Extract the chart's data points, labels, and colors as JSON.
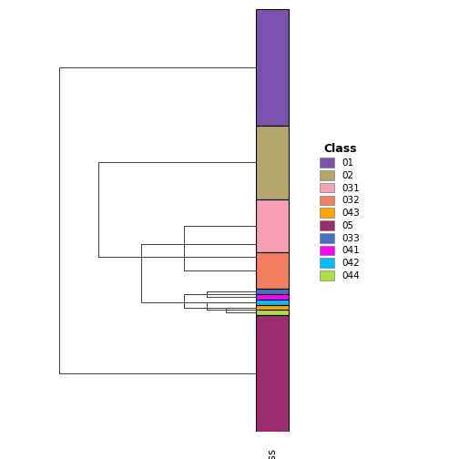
{
  "title": "",
  "xlabel": "Class",
  "legend_title": "Class",
  "classes": [
    "01",
    "02",
    "031",
    "032",
    "043",
    "05",
    "033",
    "041",
    "042",
    "044"
  ],
  "class_colors": {
    "01": "#7B52AE",
    "02": "#B5A76C",
    "031": "#F5A0B5",
    "032": "#F08060",
    "043": "#FFA500",
    "05": "#9B2D6E",
    "033": "#4472C4",
    "041": "#FF00FF",
    "042": "#00BFFF",
    "044": "#ADDF3E"
  },
  "segments_ordered": [
    {
      "class": "01",
      "n": 22
    },
    {
      "class": "02",
      "n": 14
    },
    {
      "class": "031",
      "n": 10
    },
    {
      "class": "032",
      "n": 7
    },
    {
      "class": "033",
      "n": 1
    },
    {
      "class": "041",
      "n": 1
    },
    {
      "class": "042",
      "n": 1
    },
    {
      "class": "043",
      "n": 1
    },
    {
      "class": "044",
      "n": 1
    },
    {
      "class": "05",
      "n": 22
    }
  ],
  "figure_width": 5.04,
  "figure_height": 5.04,
  "dpi": 100
}
